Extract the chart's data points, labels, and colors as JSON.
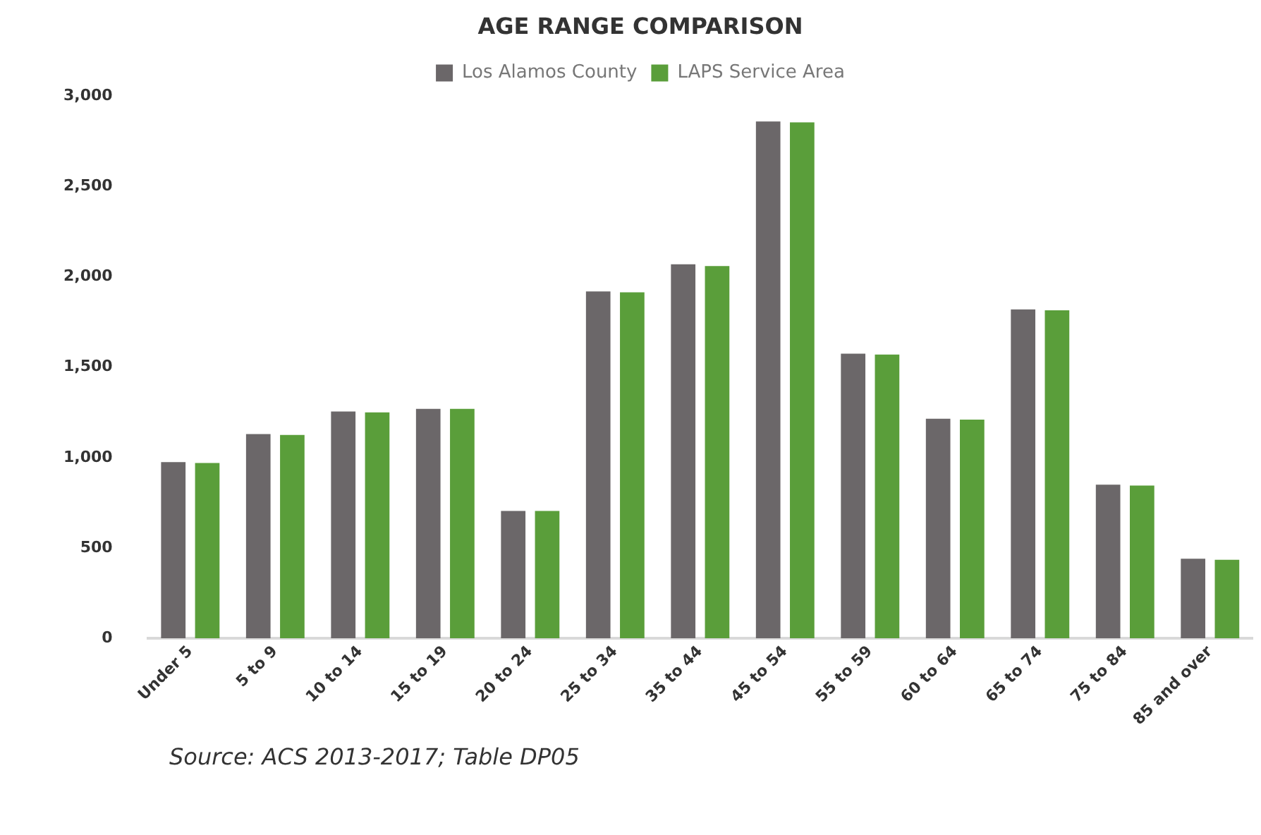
{
  "chart_data": {
    "type": "bar",
    "title": "AGE RANGE COMPARISON",
    "categories": [
      "Under 5",
      "5 to 9",
      "10 to 14",
      "15 to 19",
      "20 to 24",
      "25 to 34",
      "35 to 44",
      "45 to 54",
      "55 to 59",
      "60 to 64",
      "65 to 74",
      "75 to 84",
      "85 and over"
    ],
    "series": [
      {
        "name": "Los Alamos County",
        "color": "#6b6769",
        "values": [
          975,
          1130,
          1255,
          1270,
          705,
          1920,
          2070,
          2860,
          1575,
          1215,
          1820,
          850,
          440
        ]
      },
      {
        "name": "LAPS Service Area",
        "color": "#5a9e3a",
        "values": [
          970,
          1125,
          1250,
          1270,
          705,
          1915,
          2060,
          2855,
          1570,
          1210,
          1815,
          845,
          435
        ]
      }
    ],
    "ylim": [
      0,
      3000
    ],
    "yticks": [
      0,
      500,
      {
        "value": 1000,
        "label": "1,000"
      },
      {
        "value": 1500,
        "label": "1,500"
      },
      {
        "value": 2000,
        "label": "2,000"
      },
      {
        "value": 2500,
        "label": "2,500"
      },
      {
        "value": 3000,
        "label": "3,000"
      }
    ],
    "grid": false,
    "legend": "top",
    "annotations": [
      "Source: ACS 2013-2017; Table DP05"
    ]
  }
}
